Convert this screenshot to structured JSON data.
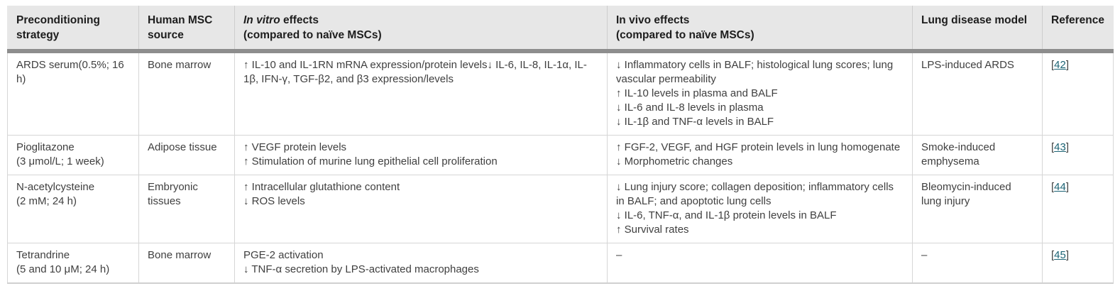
{
  "colors": {
    "header_background": "#e7e7e7",
    "header_divider": "#8d8d8d",
    "cell_border": "#d6d6d6",
    "body_text": "#3f3f3f",
    "header_text": "#1d1d1d",
    "reference_link": "#1c6374"
  },
  "table": {
    "columns": [
      {
        "key": "strategy",
        "label": "Preconditioning strategy"
      },
      {
        "key": "source",
        "label": "Human MSC source"
      },
      {
        "key": "in_vitro",
        "label_italic": "In vitro",
        "label_rest": " effects",
        "sub": "(compared to naïve MSCs)"
      },
      {
        "key": "in_vivo",
        "label": "In vivo effects",
        "sub": "(compared to naïve MSCs)"
      },
      {
        "key": "model",
        "label": "Lung disease model"
      },
      {
        "key": "reference",
        "label": "Reference"
      }
    ],
    "rows": [
      {
        "strategy": [
          "ARDS serum(0.5%; 16 h)"
        ],
        "source": [
          "Bone marrow"
        ],
        "in_vitro": [
          "↑ IL-10 and IL-1RN mRNA expression/protein levels↓ IL-6, IL-8, IL-1α, IL-1β, IFN-γ, TGF-β2, and β3 expression/levels"
        ],
        "in_vivo": [
          "↓ Inflammatory cells in BALF; histological lung scores; lung vascular permeability",
          "↑ IL-10 levels in plasma and BALF",
          "↓ IL-6 and IL-8 levels in plasma",
          "↓ IL-1β and TNF-α levels in BALF"
        ],
        "model": [
          "LPS-induced ARDS"
        ],
        "reference": "42"
      },
      {
        "strategy": [
          "Pioglitazone",
          "(3 μmol/L; 1 week)"
        ],
        "source": [
          "Adipose tissue"
        ],
        "in_vitro": [
          "↑ VEGF protein levels",
          "↑ Stimulation of murine lung epithelial cell proliferation"
        ],
        "in_vivo": [
          "↑ FGF-2, VEGF, and HGF protein levels in lung homogenate",
          "↓ Morphometric changes"
        ],
        "model": [
          "Smoke-induced emphysema"
        ],
        "reference": "43"
      },
      {
        "strategy": [
          "N-acetylcysteine",
          "(2 mM; 24 h)"
        ],
        "source": [
          "Embryonic tissues"
        ],
        "in_vitro": [
          "↑ Intracellular glutathione content",
          "↓ ROS levels"
        ],
        "in_vivo": [
          "↓ Lung injury score; collagen deposition; inflammatory cells in BALF; and apoptotic lung cells",
          "↓ IL-6, TNF-α, and IL-1β protein levels in BALF",
          "↑ Survival rates"
        ],
        "model": [
          "Bleomycin-induced lung injury"
        ],
        "reference": "44"
      },
      {
        "strategy": [
          "Tetrandrine",
          "(5 and 10 μM; 24 h)"
        ],
        "source": [
          "Bone marrow"
        ],
        "in_vitro": [
          "PGE-2 activation",
          "↓ TNF-α secretion by LPS-activated macrophages"
        ],
        "in_vivo": [
          "–"
        ],
        "model": [
          "–"
        ],
        "reference": "45"
      }
    ]
  }
}
